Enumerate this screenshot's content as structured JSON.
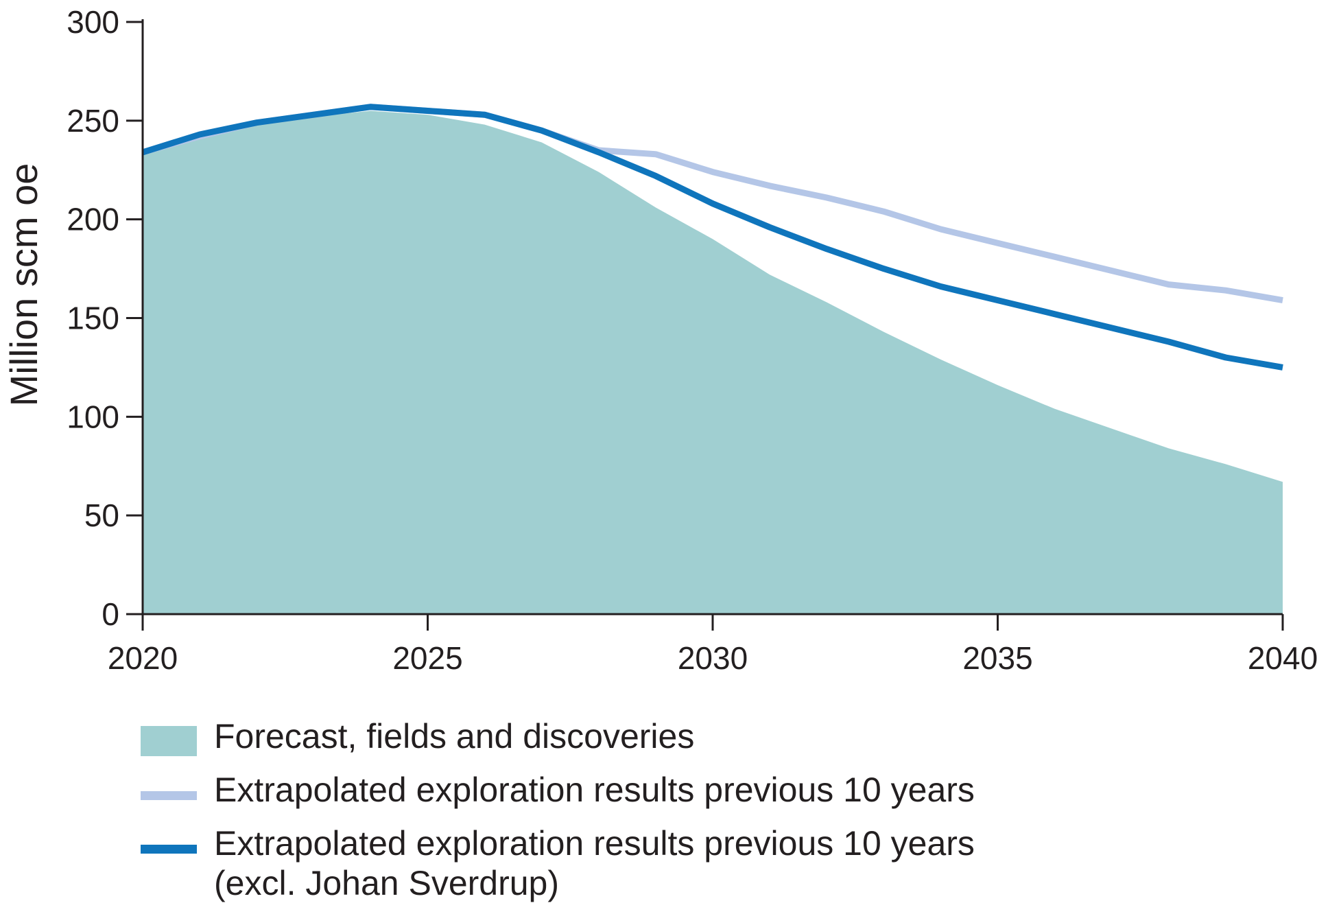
{
  "chart_data": {
    "type": "area",
    "ylabel": "Million scm oe",
    "xlabel": "",
    "title": "",
    "xlim": [
      2020,
      2040
    ],
    "ylim": [
      0,
      300
    ],
    "x_ticks": [
      "2020",
      "2025",
      "2030",
      "2035",
      "2040"
    ],
    "y_ticks": [
      "0",
      "50",
      "100",
      "150",
      "200",
      "250",
      "300"
    ],
    "grid": false,
    "legend_position": "bottom",
    "x": [
      2020,
      2021,
      2022,
      2023,
      2024,
      2025,
      2026,
      2027,
      2028,
      2029,
      2030,
      2031,
      2032,
      2033,
      2034,
      2035,
      2036,
      2037,
      2038,
      2039,
      2040
    ],
    "series": [
      {
        "name": "Forecast, fields and discoveries",
        "type": "area",
        "color": "#a0cfd1",
        "values": [
          234,
          241,
          248,
          252,
          255,
          253,
          248,
          239,
          224,
          206,
          190,
          172,
          158,
          143,
          129,
          116,
          104,
          94,
          84,
          76,
          67
        ]
      },
      {
        "name": "Extrapolated exploration results previous 10 years",
        "type": "line",
        "color": "#b4c6e7",
        "values": [
          234,
          242,
          249,
          253,
          257,
          255,
          253,
          245,
          235,
          233,
          224,
          217,
          211,
          204,
          195,
          188,
          181,
          174,
          167,
          164,
          159
        ]
      },
      {
        "name": "Extrapolated exploration results previous 10 years (excl. Johan Sverdrup)",
        "name_line1": "Extrapolated exploration results previous 10 years",
        "name_line2": "(excl. Johan Sverdrup)",
        "type": "line",
        "color": "#0f75bc",
        "values": [
          234,
          243,
          249,
          253,
          257,
          255,
          253,
          245,
          234,
          222,
          208,
          196,
          185,
          175,
          166,
          159,
          152,
          145,
          138,
          130,
          125
        ]
      }
    ]
  }
}
